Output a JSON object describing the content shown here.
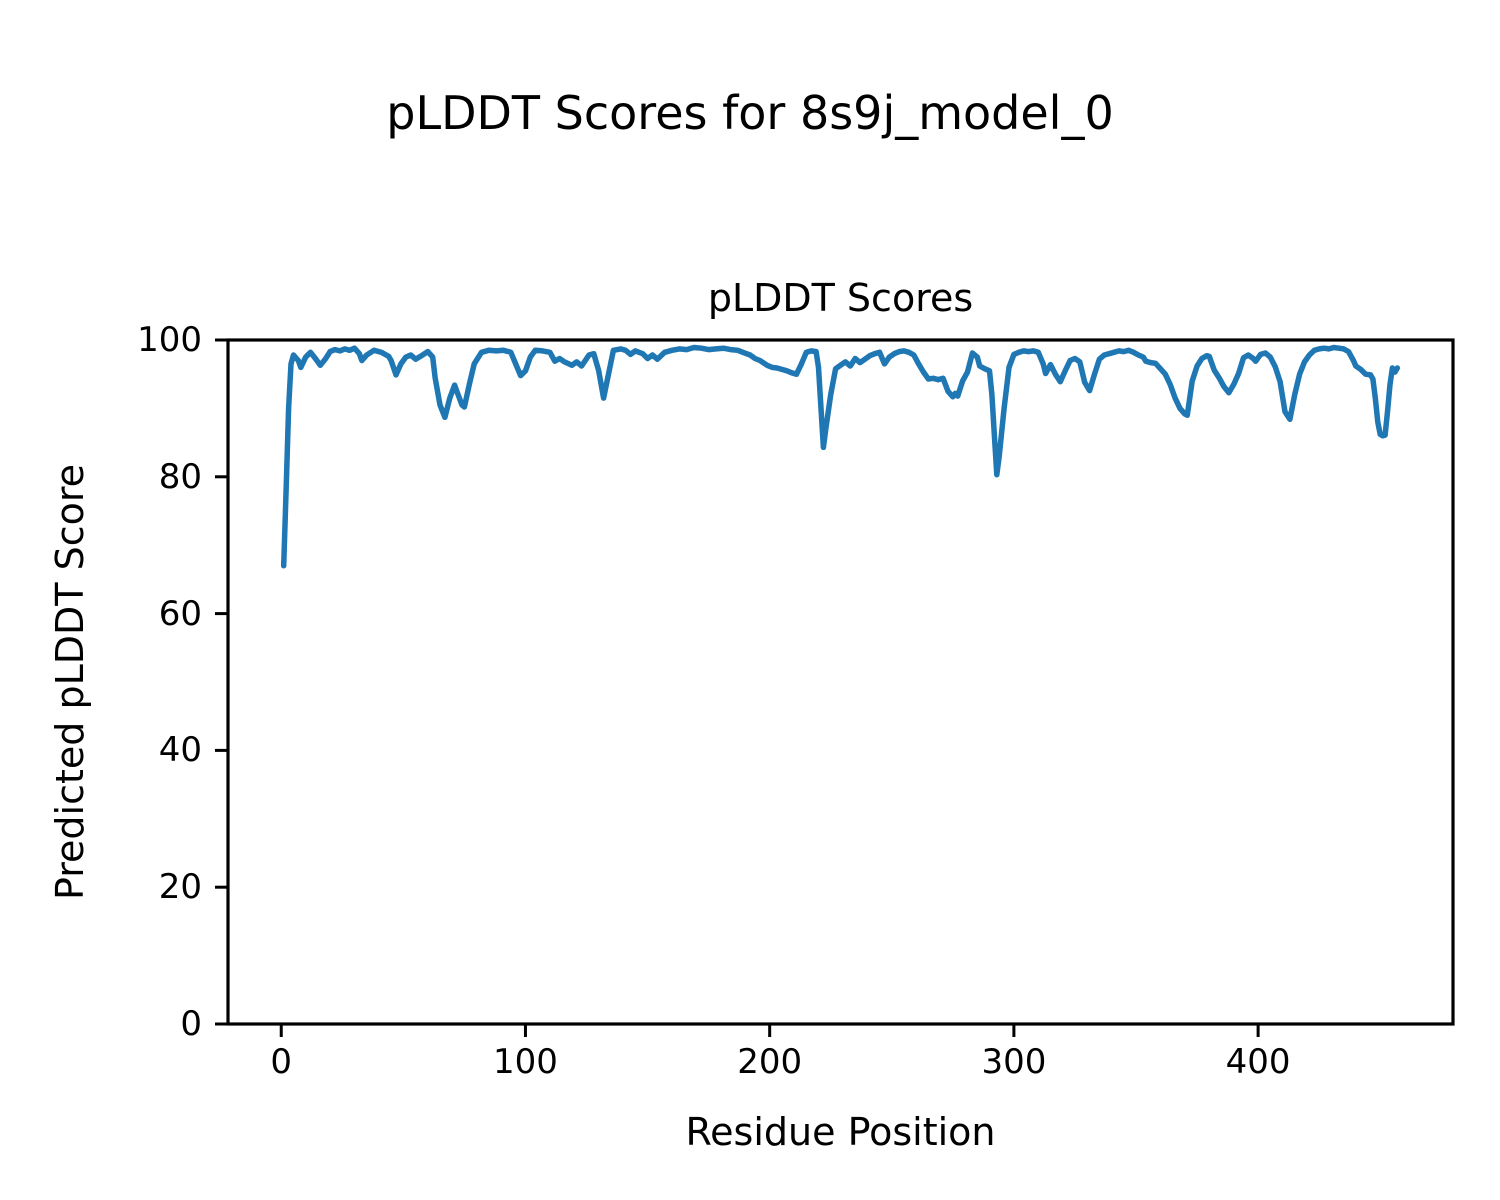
{
  "figure": {
    "title": "pLDDT Scores for 8s9j_model_0"
  },
  "chart_data": {
    "type": "line",
    "title": "pLDDT Scores",
    "xlabel": "Residue Position",
    "ylabel": "Predicted pLDDT Score",
    "x_ticks": [
      0,
      100,
      200,
      300,
      400
    ],
    "y_ticks": [
      0,
      20,
      40,
      60,
      80,
      100
    ],
    "xlim": [
      -21.8,
      479.8
    ],
    "ylim": [
      0,
      100
    ],
    "grid": false,
    "legend": "none",
    "background": "#ffffff",
    "spine_color": "#000000",
    "line_width": 5.5,
    "series": [
      {
        "name": "pLDDT",
        "color": "#1f77b4",
        "x": [
          1,
          2,
          3,
          4,
          5,
          7,
          8,
          10,
          12,
          14,
          16,
          18,
          20,
          22,
          24,
          26,
          28,
          30,
          32,
          33,
          35,
          38,
          41,
          44,
          45,
          47,
          49,
          51,
          53,
          55,
          57,
          60,
          62,
          63,
          65,
          67,
          69,
          71,
          72,
          74,
          75,
          77,
          79,
          82,
          85,
          88,
          91,
          94,
          96,
          98,
          100,
          102,
          104,
          107,
          110,
          112,
          114,
          116,
          119,
          121,
          123,
          126,
          128,
          130,
          132,
          134,
          136,
          139,
          141,
          143,
          145,
          148,
          150,
          152,
          154,
          157,
          160,
          163,
          166,
          169,
          172,
          175,
          178,
          181,
          184,
          187,
          189,
          192,
          194,
          196,
          199,
          201,
          203,
          205,
          207,
          209,
          211,
          213,
          215,
          217,
          219,
          220,
          221,
          222,
          223,
          225,
          227,
          229,
          231,
          233,
          235,
          237,
          239,
          241,
          243,
          245,
          247,
          249,
          251,
          253,
          255,
          257,
          259,
          261,
          263,
          265,
          267,
          269,
          271,
          273,
          275,
          276,
          277,
          279,
          281,
          283,
          285,
          286,
          288,
          290,
          291,
          292,
          293,
          294,
          296,
          298,
          300,
          302,
          304,
          306,
          308,
          310,
          312,
          313,
          315,
          317,
          319,
          321,
          323,
          325,
          327,
          329,
          331,
          333,
          335,
          337,
          339,
          341,
          343,
          345,
          347,
          349,
          351,
          353,
          354,
          356,
          358,
          360,
          362,
          364,
          366,
          368,
          370,
          371,
          373,
          375,
          377,
          379,
          380,
          382,
          384,
          386,
          388,
          390,
          392,
          394,
          396,
          398,
          399,
          401,
          403,
          405,
          407,
          409,
          411,
          413,
          415,
          417,
          419,
          421,
          423,
          425,
          427,
          429,
          431,
          433,
          435,
          437,
          439,
          440,
          442,
          444,
          446,
          447,
          448,
          449,
          450,
          451,
          452,
          453,
          454,
          455,
          456,
          457
        ],
        "y": [
          67,
          78,
          90,
          96.5,
          97.8,
          97,
          96,
          97.5,
          98.2,
          97.3,
          96.3,
          97.2,
          98.3,
          98.6,
          98.4,
          98.7,
          98.5,
          98.8,
          98,
          97,
          97.8,
          98.5,
          98.2,
          97.6,
          97,
          94.9,
          96.5,
          97.5,
          97.8,
          97.2,
          97.6,
          98.3,
          97.5,
          94.5,
          90.5,
          88.7,
          91.5,
          93.4,
          92.4,
          90.5,
          90.2,
          93.5,
          96.5,
          98.2,
          98.5,
          98.4,
          98.5,
          98.2,
          96.5,
          94.8,
          95.5,
          97.5,
          98.5,
          98.4,
          98.2,
          96.9,
          97.3,
          96.8,
          96.3,
          96.8,
          96.2,
          97.8,
          98,
          95.5,
          91.5,
          95,
          98.5,
          98.7,
          98.5,
          97.9,
          98.4,
          98,
          97.3,
          97.8,
          97.2,
          98.2,
          98.5,
          98.7,
          98.6,
          98.9,
          98.8,
          98.6,
          98.7,
          98.8,
          98.6,
          98.5,
          98.2,
          97.8,
          97.3,
          97,
          96.3,
          96,
          95.9,
          95.7,
          95.5,
          95.2,
          95,
          96.5,
          98.2,
          98.4,
          98.3,
          96,
          90,
          84.3,
          87,
          92,
          95.8,
          96.3,
          96.8,
          96.2,
          97.3,
          96.7,
          97.2,
          97.7,
          98,
          98.2,
          96.5,
          97.5,
          98,
          98.3,
          98.4,
          98.2,
          97.8,
          96.5,
          95.3,
          94.3,
          94.4,
          94.2,
          94.4,
          92.5,
          91.7,
          92.2,
          91.8,
          94,
          95.3,
          98.1,
          97.5,
          96.2,
          95.8,
          95.5,
          92,
          86,
          80.3,
          83,
          90,
          96,
          97.9,
          98.2,
          98.4,
          98.3,
          98.4,
          98.2,
          96.5,
          95.1,
          96.4,
          95,
          93.9,
          95.5,
          97,
          97.3,
          96.8,
          93.8,
          92.6,
          95,
          97.2,
          97.8,
          98,
          98.2,
          98.4,
          98.3,
          98.5,
          98.2,
          97.8,
          97.5,
          96.9,
          96.7,
          96.6,
          95.8,
          95,
          93.5,
          91.5,
          90,
          89.2,
          89,
          94,
          96.2,
          97.3,
          97.7,
          97.6,
          95.6,
          94.5,
          93.2,
          92.3,
          93.5,
          95.1,
          97.4,
          97.8,
          97.3,
          96.9,
          97.9,
          98.1,
          97.5,
          96.1,
          93.9,
          89.5,
          88.4,
          92,
          95,
          96.8,
          97.8,
          98.5,
          98.7,
          98.8,
          98.7,
          98.9,
          98.8,
          98.7,
          98.3,
          97,
          96.2,
          95.7,
          95,
          94.9,
          94.3,
          91.5,
          88,
          86.2,
          86,
          86.1,
          89.5,
          93.5,
          95.9,
          95.3,
          95.9
        ]
      }
    ]
  }
}
